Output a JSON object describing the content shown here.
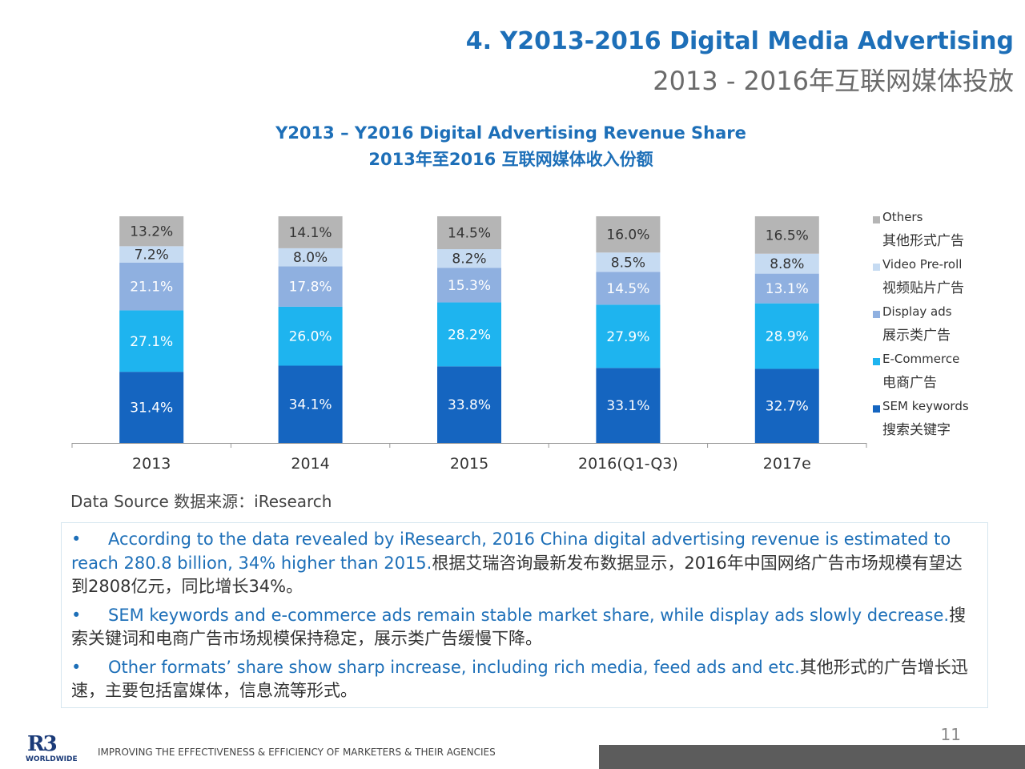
{
  "header": {
    "title_en": "4. Y2013-2016 Digital Media Advertising",
    "title_zh": "2013 - 2016年互联网媒体投放"
  },
  "chart_data": {
    "type": "bar",
    "stacked": true,
    "title": "Y2013 – Y2016 Digital Advertising Revenue Share",
    "subtitle": "2013年至2016 互联网媒体收入份额",
    "categories": [
      "2013",
      "2014",
      "2015",
      "2016(Q1-Q3)",
      "2017e"
    ],
    "series": [
      {
        "name": "SEM keywords",
        "name_zh": "搜索关键字",
        "color": "#1565c0",
        "values": [
          31.4,
          34.1,
          33.8,
          33.1,
          32.7
        ]
      },
      {
        "name": "E-Commerce",
        "name_zh": "电商广告",
        "color": "#1eb4ef",
        "values": [
          27.1,
          26.0,
          28.2,
          27.9,
          28.9
        ]
      },
      {
        "name": "Display ads",
        "name_zh": "展示类广告",
        "color": "#8fb0e0",
        "values": [
          21.1,
          17.8,
          15.3,
          14.5,
          13.1
        ]
      },
      {
        "name": "Video Pre-roll",
        "name_zh": "视频贴片广告",
        "color": "#c6dbf2",
        "values": [
          7.2,
          8.0,
          8.2,
          8.5,
          8.8
        ]
      },
      {
        "name": "Others",
        "name_zh": "其他形式广告",
        "color": "#b5b5b5",
        "values": [
          13.2,
          14.1,
          14.5,
          16.0,
          16.5
        ]
      }
    ],
    "labels": [
      [
        "31.4%",
        "34.1%",
        "33.8%",
        "33.1%",
        "32.7%"
      ],
      [
        "27.1%",
        "26.0%",
        "28.2%",
        "27.9%",
        "28.9%"
      ],
      [
        "21.1%",
        "17.8%",
        "15.3%",
        "14.5%",
        "13.1%"
      ],
      [
        "7.2%",
        "8.0%",
        "8.2%",
        "8.5%",
        "8.8%"
      ],
      [
        "13.2%",
        "14.1%",
        "14.5%",
        "16.0%",
        "16.5%"
      ]
    ],
    "ylim": [
      0,
      100
    ],
    "grid": false,
    "legend_position": "right"
  },
  "source": "Data Source 数据来源：iResearch",
  "notes": [
    {
      "bullet": "•",
      "en": "According to the data revealed by iResearch, 2016 China digital advertising revenue is estimated to reach 280.8 billion, 34% higher than 2015.",
      "zh": "根据艾瑞咨询最新发布数据显示，2016年中国网络广告市场规模有望达到2808亿元，同比增长34%。"
    },
    {
      "bullet": "•",
      "en": "SEM keywords and e-commerce ads remain stable market share, while display ads slowly decrease.",
      "zh": "搜索关键词和电商广告市场规模保持稳定，展示类广告缓慢下降。"
    },
    {
      "bullet": "•",
      "en": "Other formats’ share show sharp increase, including rich media, feed ads and etc.",
      "zh": "其他形式的广告增长迅速，主要包括富媒体，信息流等形式。"
    }
  ],
  "footer": {
    "page_number": "11",
    "logo_mark": "R3",
    "logo_sub": "WORLDWIDE",
    "tagline": "IMPROVING THE EFFECTIVENESS & EFFICIENCY OF MARKETERS & THEIR AGENCIES"
  }
}
